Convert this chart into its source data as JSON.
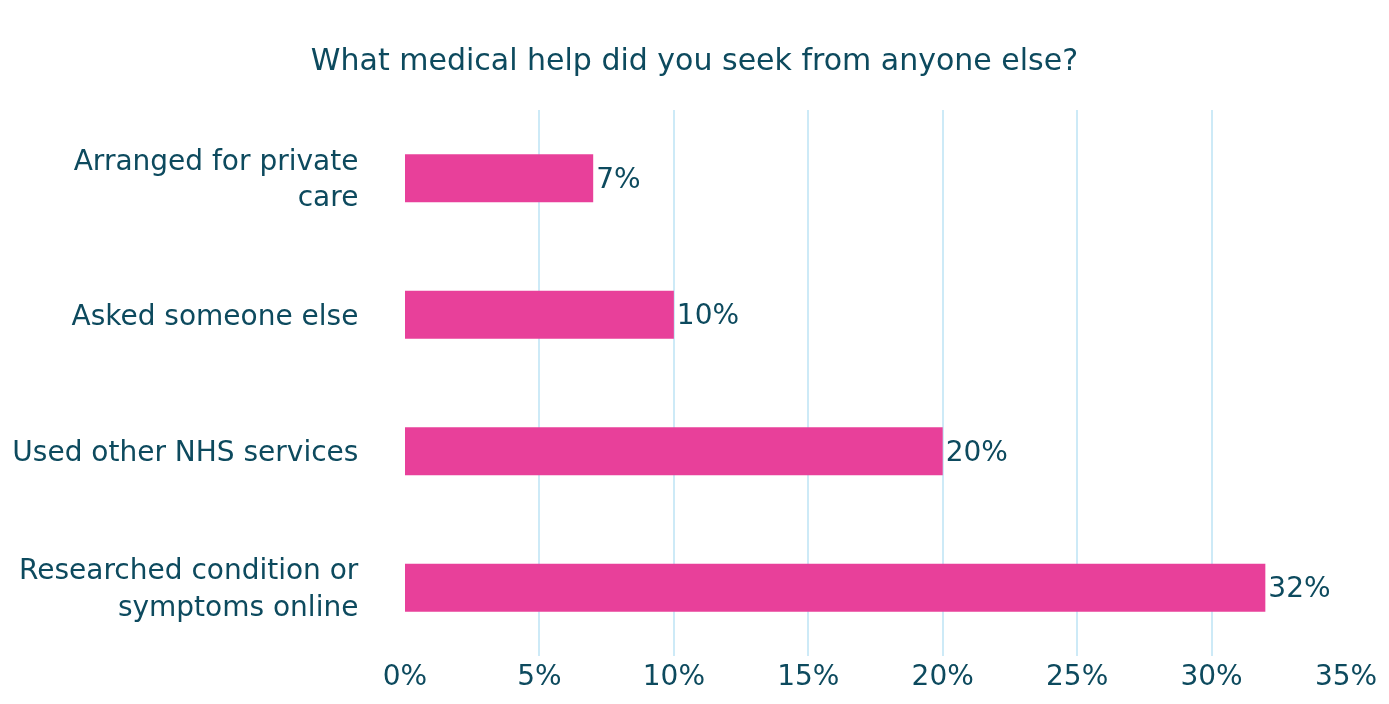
{
  "chart_data": {
    "type": "bar",
    "orientation": "horizontal",
    "title": "What medical help did you seek from anyone else?",
    "categories": [
      "Arranged for private care",
      "Asked someone else",
      "Used other NHS services",
      "Researched condition or symptoms online"
    ],
    "values": [
      7,
      10,
      20,
      32
    ],
    "value_labels": [
      "7%",
      "10%",
      "20%",
      "32%"
    ],
    "color": "#e8409a",
    "xlim": [
      0,
      35
    ],
    "xticks": [
      {
        "value": 0,
        "label": "0%"
      },
      {
        "value": 5,
        "label": "5%"
      },
      {
        "value": 10,
        "label": "10%"
      },
      {
        "value": 15,
        "label": "15%"
      },
      {
        "value": 20,
        "label": "20%"
      },
      {
        "value": 25,
        "label": "25%"
      },
      {
        "value": 30,
        "label": "30%"
      },
      {
        "value": 35,
        "label": "35%"
      }
    ],
    "grid": "x",
    "legend": false
  }
}
